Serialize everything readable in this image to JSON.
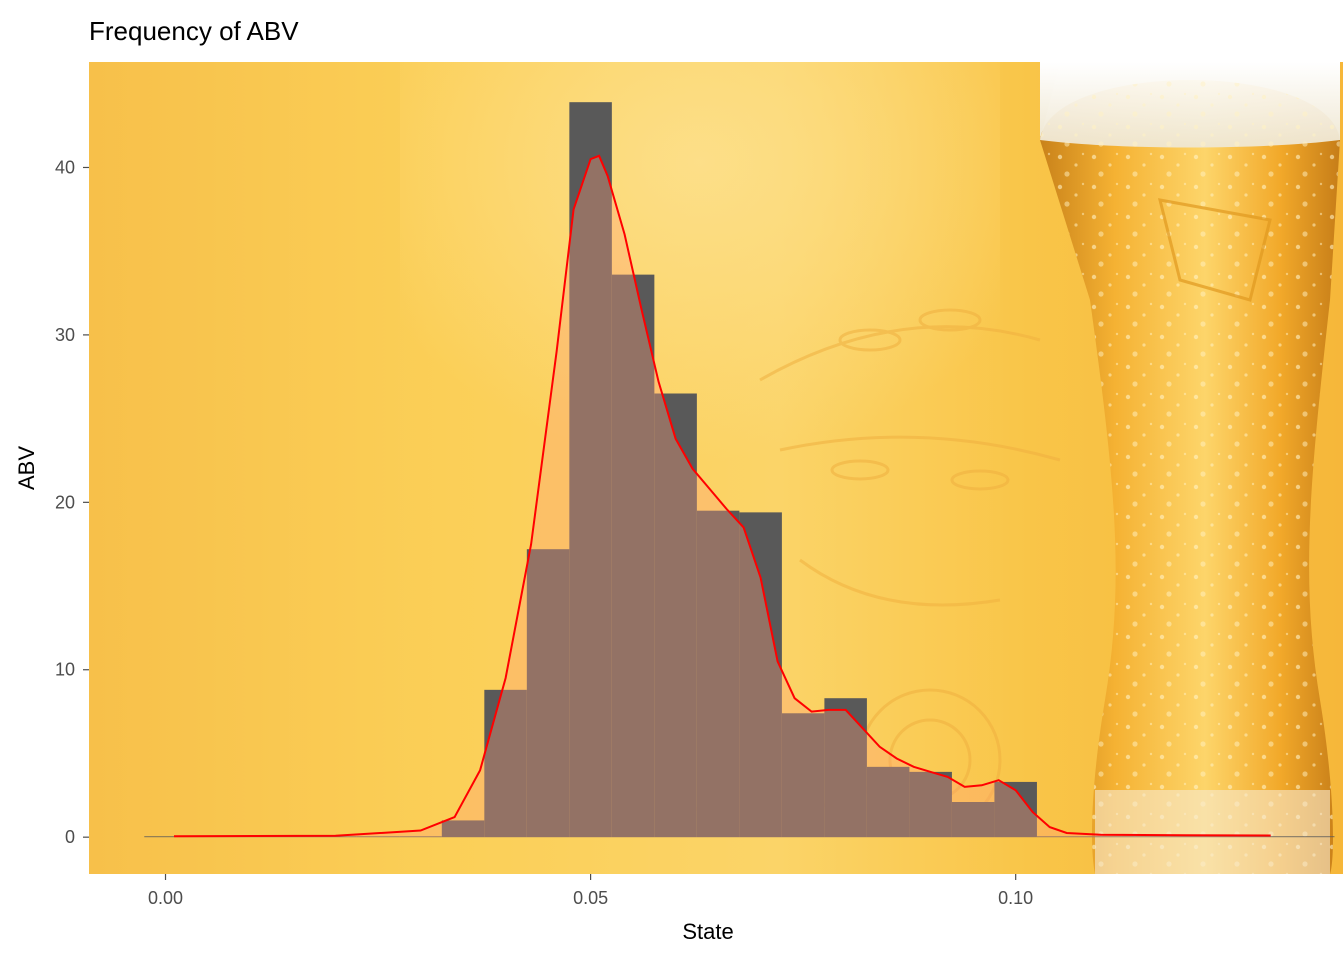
{
  "chart_data": {
    "type": "bar",
    "title": "Frequency of ABV",
    "xlabel": "State",
    "ylabel": "ABV",
    "xlim": [
      -0.009,
      0.1385
    ],
    "ylim": [
      -2.2,
      46.3
    ],
    "x_ticks": [
      0.0,
      0.05,
      0.1
    ],
    "x_tick_labels": [
      "0.00",
      "0.05",
      "0.10"
    ],
    "y_ticks": [
      0,
      10,
      20,
      30,
      40
    ],
    "y_tick_labels": [
      "0",
      "10",
      "20",
      "30",
      "40"
    ],
    "grid": false,
    "background": "beer-glass-photo",
    "histogram": {
      "bin_width": 0.005,
      "bin_starts": [
        -0.0025,
        0.0025,
        0.0075,
        0.0125,
        0.0175,
        0.0225,
        0.0275,
        0.0325,
        0.0375,
        0.0425,
        0.0475,
        0.0525,
        0.0575,
        0.0625,
        0.0675,
        0.0725,
        0.0775,
        0.0825,
        0.0875,
        0.0925,
        0.0975,
        0.1025,
        0.1075,
        0.1125,
        0.1175,
        0.1225,
        0.1275,
        0.1325
      ],
      "values": [
        0,
        0,
        0,
        0,
        0,
        0,
        0,
        1,
        8.8,
        17.2,
        43.9,
        33.6,
        26.5,
        19.5,
        19.4,
        7.4,
        8.3,
        4.2,
        3.9,
        2.1,
        3.3,
        0,
        0,
        0,
        0,
        0,
        0,
        0
      ],
      "color": "#595959"
    },
    "density": {
      "x": [
        0.001,
        0.02,
        0.03,
        0.034,
        0.037,
        0.04,
        0.043,
        0.046,
        0.048,
        0.05,
        0.051,
        0.052,
        0.054,
        0.056,
        0.058,
        0.06,
        0.062,
        0.064,
        0.066,
        0.068,
        0.07,
        0.072,
        0.074,
        0.076,
        0.078,
        0.08,
        0.082,
        0.084,
        0.086,
        0.088,
        0.09,
        0.092,
        0.094,
        0.096,
        0.098,
        0.1,
        0.102,
        0.104,
        0.106,
        0.11,
        0.12,
        0.13
      ],
      "y": [
        0.05,
        0.08,
        0.4,
        1.2,
        4,
        9.5,
        17.5,
        29,
        37.5,
        40.5,
        40.7,
        39.5,
        36,
        31.5,
        27.2,
        23.8,
        22,
        20.8,
        19.6,
        18.5,
        15.5,
        10.5,
        8.3,
        7.5,
        7.6,
        7.6,
        6.5,
        5.4,
        4.7,
        4.2,
        3.9,
        3.6,
        3.0,
        3.1,
        3.4,
        2.8,
        1.5,
        0.6,
        0.25,
        0.15,
        0.12,
        0.1
      ],
      "fill": "#ffa07a",
      "line_color": "#ff0000",
      "fill_opacity": 0.35
    }
  }
}
